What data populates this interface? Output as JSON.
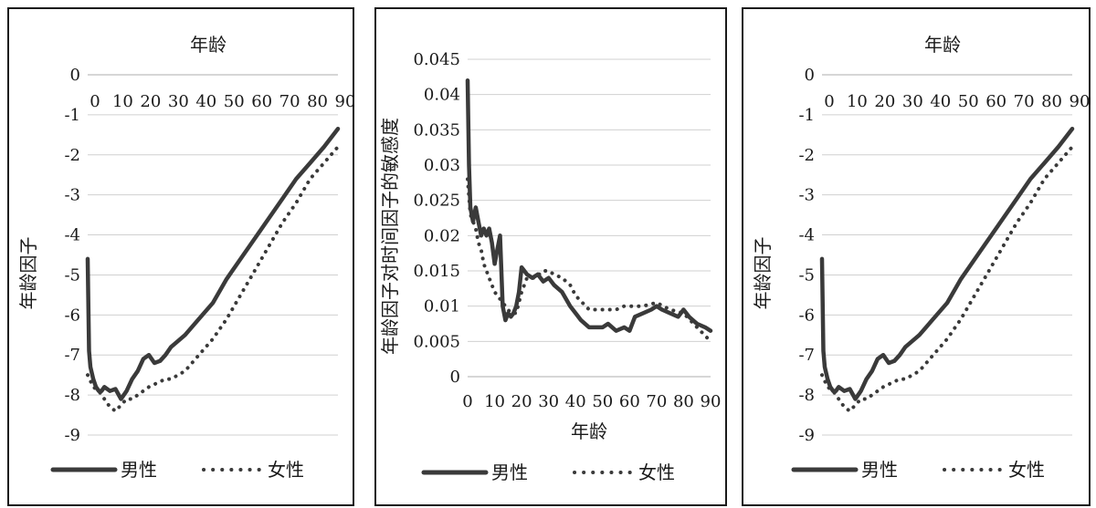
{
  "chart_data": [
    {
      "type": "line",
      "title": "年龄",
      "xlabel": "年龄",
      "ylabel": "年龄因子",
      "xlim": [
        0,
        90
      ],
      "ylim": [
        -9,
        0
      ],
      "x_ticks": [
        0,
        10,
        20,
        30,
        40,
        50,
        60,
        70,
        80,
        90
      ],
      "y_ticks": [
        0,
        -1,
        -2,
        -3,
        -4,
        -5,
        -6,
        -7,
        -8,
        -9
      ],
      "x_axis_position": "top",
      "grid": true,
      "legend": "bottom",
      "series": [
        {
          "name": "男性",
          "style": "solid",
          "x": [
            0,
            0.5,
            1,
            2,
            3,
            4,
            5,
            6,
            8,
            10,
            12,
            14,
            16,
            18,
            20,
            22,
            24,
            26,
            28,
            30,
            35,
            40,
            45,
            50,
            55,
            60,
            65,
            70,
            75,
            80,
            85,
            90
          ],
          "y": [
            -4.6,
            -6.9,
            -7.3,
            -7.6,
            -7.8,
            -7.9,
            -7.9,
            -7.8,
            -7.9,
            -7.85,
            -8.1,
            -7.9,
            -7.6,
            -7.4,
            -7.1,
            -7.0,
            -7.2,
            -7.15,
            -7.0,
            -6.8,
            -6.5,
            -6.1,
            -5.7,
            -5.1,
            -4.6,
            -4.1,
            -3.6,
            -3.1,
            -2.6,
            -2.2,
            -1.8,
            -1.35
          ]
        },
        {
          "name": "女性",
          "style": "dotted",
          "x": [
            0,
            2,
            4,
            6,
            8,
            10,
            12,
            14,
            16,
            18,
            20,
            22,
            25,
            28,
            30,
            35,
            40,
            45,
            50,
            55,
            60,
            65,
            70,
            75,
            80,
            85,
            90
          ],
          "y": [
            -7.5,
            -7.8,
            -7.9,
            -8.1,
            -8.3,
            -8.4,
            -8.25,
            -8.1,
            -8.1,
            -8.0,
            -7.9,
            -7.8,
            -7.7,
            -7.6,
            -7.6,
            -7.4,
            -7.0,
            -6.6,
            -6.1,
            -5.5,
            -4.9,
            -4.3,
            -3.7,
            -3.2,
            -2.6,
            -2.2,
            -1.8
          ]
        }
      ]
    },
    {
      "type": "line",
      "xlabel": "年龄",
      "ylabel": "年龄因子对时间因子的敏感度",
      "xlim": [
        0,
        90
      ],
      "ylim": [
        0,
        0.045
      ],
      "x_ticks": [
        0,
        10,
        20,
        30,
        40,
        50,
        60,
        70,
        80,
        90
      ],
      "y_ticks": [
        "0",
        "0.005",
        "0.01",
        "0.015",
        "0.02",
        "0.025",
        "0.03",
        "0.035",
        "0.04",
        "0.045"
      ],
      "x_axis_position": "bottom",
      "grid": true,
      "legend": "bottom",
      "series": [
        {
          "name": "男性",
          "style": "solid",
          "x": [
            0,
            0.5,
            1,
            2,
            3,
            4,
            5,
            6,
            7,
            8,
            9,
            10,
            11,
            12,
            13,
            14,
            15,
            16,
            17,
            18,
            19,
            20,
            21,
            22,
            24,
            26,
            28,
            30,
            32,
            35,
            38,
            40,
            42,
            45,
            48,
            50,
            52,
            55,
            58,
            60,
            62,
            65,
            68,
            70,
            72,
            75,
            78,
            80,
            82,
            85,
            88,
            90
          ],
          "y": [
            0.042,
            0.03,
            0.024,
            0.022,
            0.024,
            0.022,
            0.02,
            0.021,
            0.02,
            0.021,
            0.019,
            0.016,
            0.018,
            0.02,
            0.01,
            0.008,
            0.009,
            0.0085,
            0.009,
            0.01,
            0.012,
            0.0155,
            0.015,
            0.0145,
            0.014,
            0.0145,
            0.0135,
            0.014,
            0.013,
            0.012,
            0.01,
            0.009,
            0.008,
            0.007,
            0.007,
            0.007,
            0.0075,
            0.0065,
            0.007,
            0.0065,
            0.0085,
            0.009,
            0.0095,
            0.01,
            0.0095,
            0.009,
            0.0085,
            0.0095,
            0.0085,
            0.0075,
            0.007,
            0.0065
          ]
        },
        {
          "name": "女性",
          "style": "dotted",
          "x": [
            0,
            1,
            2,
            3,
            4,
            5,
            6,
            8,
            10,
            12,
            14,
            16,
            18,
            20,
            22,
            25,
            28,
            30,
            32,
            35,
            38,
            40,
            45,
            50,
            55,
            58,
            60,
            65,
            70,
            75,
            80,
            85,
            90
          ],
          "y": [
            0.028,
            0.023,
            0.022,
            0.021,
            0.019,
            0.018,
            0.016,
            0.014,
            0.012,
            0.011,
            0.01,
            0.009,
            0.009,
            0.012,
            0.014,
            0.014,
            0.015,
            0.015,
            0.0145,
            0.014,
            0.013,
            0.0115,
            0.0095,
            0.0095,
            0.0095,
            0.01,
            0.01,
            0.01,
            0.0105,
            0.0095,
            0.009,
            0.007,
            0.005
          ]
        }
      ]
    },
    {
      "type": "line",
      "title": "年龄",
      "xlabel": "年龄",
      "ylabel": "年龄因子",
      "xlim": [
        0,
        90
      ],
      "ylim": [
        -9,
        0
      ],
      "x_ticks": [
        0,
        10,
        20,
        30,
        40,
        50,
        60,
        70,
        80,
        90
      ],
      "y_ticks": [
        0,
        -1,
        -2,
        -3,
        -4,
        -5,
        -6,
        -7,
        -8,
        -9
      ],
      "x_axis_position": "top",
      "grid": true,
      "legend": "bottom",
      "series": [
        {
          "name": "男性",
          "style": "solid",
          "x": [
            0,
            0.5,
            1,
            2,
            3,
            4,
            5,
            6,
            8,
            10,
            12,
            14,
            16,
            18,
            20,
            22,
            24,
            26,
            28,
            30,
            35,
            40,
            45,
            50,
            55,
            60,
            65,
            70,
            75,
            80,
            85,
            90
          ],
          "y": [
            -4.6,
            -6.9,
            -7.3,
            -7.6,
            -7.8,
            -7.9,
            -7.9,
            -7.8,
            -7.9,
            -7.85,
            -8.1,
            -7.9,
            -7.6,
            -7.4,
            -7.1,
            -7.0,
            -7.2,
            -7.15,
            -7.0,
            -6.8,
            -6.5,
            -6.1,
            -5.7,
            -5.1,
            -4.6,
            -4.1,
            -3.6,
            -3.1,
            -2.6,
            -2.2,
            -1.8,
            -1.35
          ]
        },
        {
          "name": "女性",
          "style": "dotted",
          "x": [
            0,
            2,
            4,
            6,
            8,
            10,
            12,
            14,
            16,
            18,
            20,
            22,
            25,
            28,
            30,
            35,
            40,
            45,
            50,
            55,
            60,
            65,
            70,
            75,
            80,
            85,
            90
          ],
          "y": [
            -7.5,
            -7.8,
            -7.9,
            -8.1,
            -8.3,
            -8.4,
            -8.25,
            -8.1,
            -8.1,
            -8.0,
            -7.9,
            -7.8,
            -7.7,
            -7.6,
            -7.6,
            -7.4,
            -7.0,
            -6.6,
            -6.1,
            -5.5,
            -4.9,
            -4.3,
            -3.7,
            -3.2,
            -2.6,
            -2.2,
            -1.8
          ]
        }
      ]
    }
  ]
}
